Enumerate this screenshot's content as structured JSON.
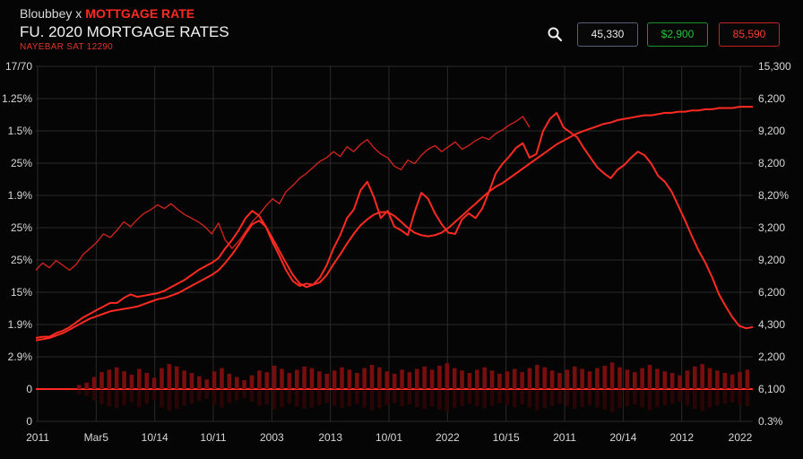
{
  "header": {
    "brand": "Bloubbey x",
    "brand_highlight": "MOTTGAGE RATE",
    "title": "FU. 2020 MORTGAGE RATES",
    "subtitle": "NAYEBAR SAT 12290",
    "search_icon": "search-icon",
    "quotes": [
      {
        "value": "45,330",
        "color": "#eaeaea"
      },
      {
        "value": "$2,900",
        "color": "#28c23a"
      },
      {
        "value": "85,590",
        "color": "#ff3b30"
      }
    ]
  },
  "colors": {
    "accent": "#ff2a22",
    "line": "#ff2a22",
    "grid": "#2a2a2a",
    "bars": "#7a0d0d"
  },
  "chart_data": {
    "type": "line",
    "title": "FU. 2020 MORTGAGE RATES",
    "grid": true,
    "x_tick_labels": [
      "2011",
      "Mar5",
      "10/14",
      "10/11",
      "2003",
      "2013",
      "10/01",
      "2022",
      "10/15",
      "2011",
      "20/14",
      "2012",
      "2022"
    ],
    "y_left_tick_labels": [
      "17/70",
      "1.25%",
      "1.5%",
      "25%",
      "1.9%",
      "25%",
      "25%",
      "15%",
      "1.9%",
      "2.9%",
      "0",
      "0"
    ],
    "y_right_tick_labels": [
      "15,300",
      "6,200",
      "9,200",
      "8,200",
      "8,20%",
      "3,200",
      "9,200",
      "6,200",
      "4,300",
      "2,200",
      "6,100",
      "0.3%"
    ],
    "series": [
      {
        "values": [
          7.6,
          8.2,
          7.8,
          8.4,
          8.0,
          7.6,
          8.1,
          8.9,
          9.4,
          9.9,
          10.6,
          10.3,
          10.9,
          11.6,
          11.2,
          11.8,
          12.3,
          12.6,
          13.0,
          12.7,
          13.1,
          12.6,
          12.2,
          11.9,
          11.6,
          11.2,
          10.6,
          11.5,
          10.1,
          9.4,
          10.0,
          10.8,
          11.6,
          12.2,
          12.9,
          13.5,
          13.1,
          14.1,
          14.6,
          15.2,
          15.6,
          16.1,
          16.6,
          16.9,
          17.4,
          17.0,
          17.8,
          17.4,
          18.0,
          18.4,
          17.7,
          17.2,
          16.9,
          16.2,
          15.9,
          16.7,
          16.4,
          17.1,
          17.6,
          17.9,
          17.4,
          17.8,
          18.2,
          17.6,
          17.9,
          18.3,
          18.6,
          18.4,
          18.9,
          19.2,
          19.6,
          19.9,
          20.3,
          19.4,
          null,
          null,
          null,
          null,
          null,
          null,
          null,
          null,
          null,
          null,
          null,
          null,
          null,
          null,
          null,
          null,
          null,
          null,
          null,
          null,
          null,
          null,
          null,
          null,
          null,
          null,
          null,
          null,
          null,
          null,
          null,
          null,
          null
        ]
      },
      {
        "values": [
          2.0,
          2.1,
          2.1,
          2.4,
          2.6,
          2.9,
          3.3,
          3.7,
          4.0,
          4.3,
          4.6,
          4.9,
          4.9,
          5.3,
          5.6,
          5.4,
          5.5,
          5.6,
          5.7,
          5.9,
          6.2,
          6.5,
          6.8,
          7.2,
          7.6,
          7.9,
          8.2,
          8.6,
          9.4,
          10.1,
          10.9,
          11.9,
          12.5,
          12.1,
          11.2,
          9.9,
          8.8,
          7.6,
          6.7,
          6.3,
          6.5,
          6.4,
          7.0,
          8.0,
          9.4,
          10.5,
          11.9,
          12.6,
          14.2,
          14.9,
          13.6,
          11.9,
          12.5,
          11.2,
          10.9,
          10.5,
          12.4,
          14.0,
          13.5,
          12.3,
          11.4,
          10.7,
          10.6,
          11.8,
          12.3,
          11.9,
          12.7,
          14.1,
          15.6,
          16.4,
          17.0,
          17.7,
          18.1,
          16.9,
          17.2,
          19.1,
          20.1,
          20.6,
          19.4,
          19.0,
          18.6,
          17.7,
          16.9,
          16.1,
          15.6,
          15.2,
          15.9,
          16.3,
          16.9,
          17.4,
          17.1,
          16.4,
          15.4,
          14.9,
          14.1,
          12.9,
          11.7,
          10.4,
          9.2,
          8.2,
          7.0,
          5.6,
          4.6,
          3.7,
          3.0,
          2.8,
          2.9
        ]
      },
      {
        "values": [
          1.8,
          1.9,
          2.0,
          2.2,
          2.4,
          2.7,
          3.0,
          3.3,
          3.6,
          3.8,
          4.0,
          4.2,
          4.3,
          4.4,
          4.5,
          4.6,
          4.8,
          5.0,
          5.2,
          5.3,
          5.5,
          5.7,
          6.0,
          6.3,
          6.6,
          6.9,
          7.2,
          7.6,
          8.2,
          8.9,
          9.7,
          10.6,
          11.4,
          11.7,
          11.2,
          10.2,
          9.2,
          8.2,
          7.2,
          6.5,
          6.2,
          6.4,
          6.6,
          7.2,
          8.1,
          8.9,
          9.8,
          10.6,
          11.3,
          11.8,
          12.2,
          12.4,
          12.4,
          12.1,
          11.6,
          11.1,
          10.7,
          10.5,
          10.4,
          10.5,
          10.7,
          11.1,
          11.6,
          12.1,
          12.6,
          13.1,
          13.6,
          14.1,
          14.5,
          14.8,
          15.2,
          15.6,
          16.0,
          16.4,
          16.8,
          17.2,
          17.6,
          18.0,
          18.3,
          18.6,
          18.9,
          19.1,
          19.3,
          19.5,
          19.7,
          19.8,
          20.0,
          20.1,
          20.2,
          20.3,
          20.4,
          20.4,
          20.5,
          20.6,
          20.6,
          20.7,
          20.7,
          20.8,
          20.8,
          20.9,
          20.9,
          21.0,
          21.0,
          21.0,
          21.1,
          21.1,
          21.1
        ]
      }
    ],
    "volume": [
      0.5,
      0.8,
      1.5,
      2.1,
      2.4,
      2.7,
      2.2,
      1.8,
      2.5,
      2.0,
      1.4,
      2.6,
      3.1,
      2.8,
      2.3,
      2.0,
      1.6,
      1.2,
      2.2,
      2.6,
      1.9,
      1.5,
      1.1,
      1.7,
      2.3,
      2.1,
      2.9,
      2.5,
      2.0,
      2.4,
      2.8,
      2.6,
      2.2,
      1.9,
      2.3,
      2.7,
      2.4,
      2.0,
      2.6,
      3.0,
      2.7,
      2.2,
      1.9,
      2.4,
      2.1,
      2.5,
      2.8,
      2.4,
      2.9,
      3.2,
      2.6,
      2.3,
      2.0,
      2.4,
      2.7,
      2.3,
      1.9,
      2.2,
      2.5,
      2.1,
      2.6,
      3.0,
      2.7,
      2.3,
      2.0,
      2.4,
      2.8,
      2.5,
      2.2,
      2.6,
      2.9,
      3.3,
      2.7,
      2.4,
      2.1,
      2.6,
      3.0,
      2.5,
      2.2,
      2.0,
      1.7,
      2.3,
      2.8,
      3.1,
      2.6,
      2.3,
      2.0,
      1.8,
      2.1,
      2.4
    ]
  }
}
